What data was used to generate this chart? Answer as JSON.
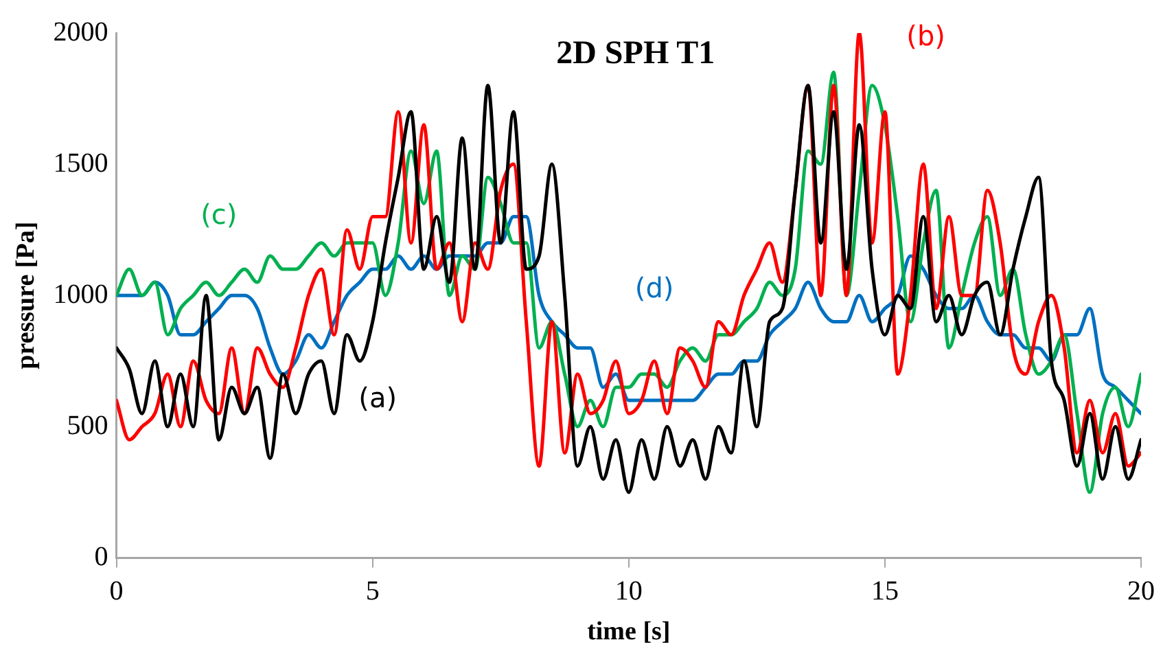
{
  "chart_data": {
    "type": "line",
    "title": "2D SPH T1",
    "xlabel": "time [s]",
    "ylabel": "pressure [Pa]",
    "x": [
      0,
      0.25,
      0.5,
      0.75,
      1,
      1.25,
      1.5,
      1.75,
      2,
      2.25,
      2.5,
      2.75,
      3,
      3.25,
      3.5,
      3.75,
      4,
      4.25,
      4.5,
      4.75,
      5,
      5.25,
      5.5,
      5.75,
      6,
      6.25,
      6.5,
      6.75,
      7,
      7.25,
      7.5,
      7.75,
      8,
      8.25,
      8.5,
      8.75,
      9,
      9.25,
      9.5,
      9.75,
      10,
      10.25,
      10.5,
      10.75,
      11,
      11.25,
      11.5,
      11.75,
      12,
      12.25,
      12.5,
      12.75,
      13,
      13.25,
      13.5,
      13.75,
      14,
      14.25,
      14.5,
      14.75,
      15,
      15.25,
      15.5,
      15.75,
      16,
      16.25,
      16.5,
      16.75,
      17,
      17.25,
      17.5,
      17.75,
      18,
      18.25,
      18.5,
      18.75,
      19,
      19.25,
      19.5,
      19.75,
      20
    ],
    "series": [
      {
        "name": "(a)",
        "color": "#000000",
        "values": [
          800,
          720,
          550,
          750,
          500,
          700,
          500,
          1000,
          450,
          650,
          550,
          650,
          380,
          700,
          550,
          700,
          750,
          550,
          850,
          750,
          900,
          1200,
          1450,
          1700,
          1100,
          1300,
          1050,
          1600,
          1100,
          1800,
          1200,
          1700,
          1100,
          1150,
          1500,
          1000,
          350,
          500,
          300,
          450,
          250,
          450,
          300,
          500,
          350,
          450,
          300,
          500,
          400,
          750,
          500,
          900,
          950,
          1400,
          1800,
          1200,
          1700,
          1100,
          1650,
          1100,
          850,
          1000,
          950,
          1300,
          900,
          1000,
          850,
          1000,
          1050,
          850,
          1100,
          1300,
          1450,
          750,
          600,
          350,
          550,
          300,
          500,
          300,
          450
        ]
      },
      {
        "name": "(b)",
        "color": "#ff0000",
        "values": [
          600,
          450,
          500,
          550,
          700,
          500,
          750,
          600,
          550,
          800,
          550,
          800,
          700,
          650,
          800,
          1000,
          1100,
          850,
          1250,
          1100,
          1300,
          1300,
          1700,
          1200,
          1650,
          1100,
          1200,
          900,
          1200,
          1100,
          1400,
          1500,
          900,
          350,
          900,
          400,
          700,
          550,
          600,
          750,
          550,
          600,
          750,
          550,
          800,
          750,
          650,
          900,
          850,
          1000,
          1100,
          1200,
          1050,
          1400,
          1800,
          1000,
          1800,
          1000,
          2000,
          1200,
          1700,
          700,
          1000,
          1500,
          950,
          1300,
          1000,
          1000,
          1400,
          1200,
          800,
          700,
          900,
          1000,
          800,
          400,
          600,
          400,
          550,
          350,
          400
        ]
      },
      {
        "name": "(c)",
        "color": "#00b050",
        "values": [
          1000,
          1100,
          1000,
          1050,
          850,
          950,
          1000,
          1050,
          1000,
          1050,
          1100,
          1050,
          1150,
          1100,
          1100,
          1150,
          1200,
          1150,
          1200,
          1200,
          1200,
          1000,
          1200,
          1550,
          1350,
          1550,
          1000,
          1150,
          1100,
          1450,
          1350,
          1200,
          1200,
          800,
          900,
          700,
          500,
          600,
          500,
          650,
          650,
          700,
          700,
          650,
          750,
          800,
          750,
          850,
          850,
          900,
          950,
          1050,
          1000,
          1100,
          1550,
          1500,
          1850,
          1000,
          1400,
          1800,
          1650,
          1300,
          900,
          1200,
          1400,
          800,
          1000,
          1200,
          1300,
          1000,
          1100,
          850,
          700,
          750,
          850,
          550,
          250,
          550,
          650,
          500,
          700
        ]
      },
      {
        "name": "(d)",
        "color": "#0070c0",
        "values": [
          1000,
          1000,
          1000,
          1050,
          1000,
          850,
          850,
          900,
          950,
          1000,
          1000,
          950,
          800,
          700,
          750,
          850,
          800,
          900,
          1000,
          1050,
          1100,
          1100,
          1150,
          1100,
          1150,
          1100,
          1150,
          1150,
          1150,
          1200,
          1200,
          1300,
          1300,
          1000,
          900,
          850,
          800,
          800,
          650,
          700,
          600,
          600,
          600,
          600,
          600,
          600,
          650,
          700,
          700,
          750,
          750,
          850,
          900,
          950,
          1050,
          950,
          900,
          900,
          1000,
          900,
          950,
          1000,
          1150,
          1100,
          1000,
          950,
          950,
          1000,
          900,
          850,
          850,
          800,
          800,
          750,
          850,
          850,
          950,
          700,
          650,
          600,
          550
        ]
      }
    ],
    "xlim": [
      0,
      20
    ],
    "xticks": [
      0,
      5,
      10,
      15,
      20
    ],
    "ylim": [
      0,
      2000
    ],
    "yticks": [
      0,
      500,
      1000,
      1500,
      2000
    ],
    "grid": false,
    "legend": false,
    "marker": "none",
    "line_style": "solid"
  }
}
